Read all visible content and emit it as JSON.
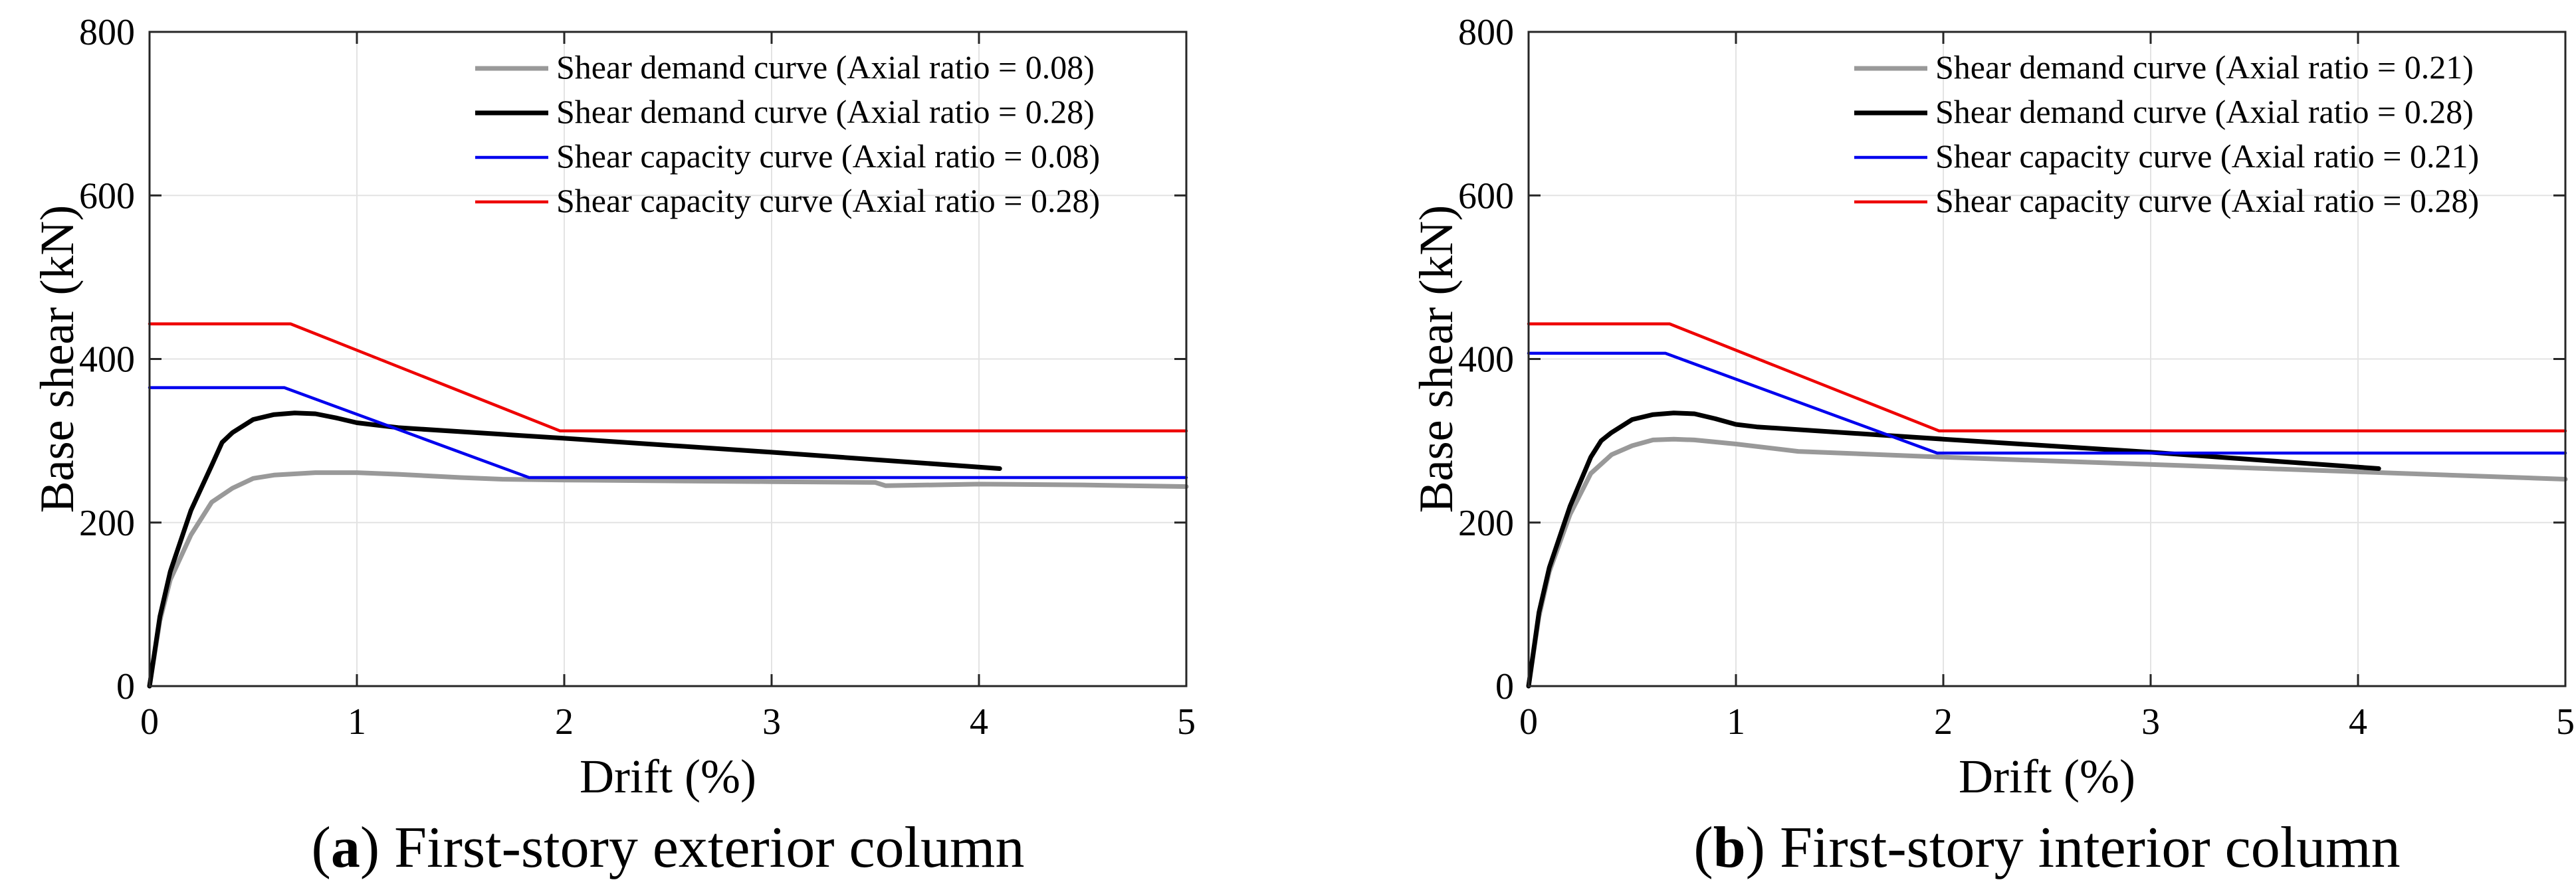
{
  "chart_data": [
    {
      "type": "line",
      "panel_letter": "a",
      "caption_text": "First-story exterior column",
      "xlabel": "Drift (%)",
      "ylabel": "Base shear (kN)",
      "xlim": [
        0,
        5
      ],
      "ylim": [
        0,
        800
      ],
      "xticks": [
        0,
        1,
        2,
        3,
        4,
        5
      ],
      "yticks": [
        0,
        200,
        400,
        600,
        800
      ],
      "grid": true,
      "legend_position": "top-right",
      "series": [
        {
          "name": "Shear demand curve (Axial ratio = 0.08)",
          "color": "#999999",
          "x": [
            0,
            0.05,
            0.1,
            0.2,
            0.3,
            0.4,
            0.5,
            0.6,
            0.8,
            1.0,
            1.2,
            1.5,
            1.7,
            2.0,
            2.5,
            3.0,
            3.5,
            3.55,
            4.0,
            4.5,
            5.0
          ],
          "y": [
            0,
            80,
            130,
            185,
            225,
            242,
            254,
            258,
            261,
            261,
            259,
            255,
            253,
            252,
            251,
            250,
            249,
            245,
            247,
            246,
            244
          ]
        },
        {
          "name": "Shear demand curve (Axial ratio = 0.28)",
          "color": "#000000",
          "x": [
            0,
            0.05,
            0.1,
            0.2,
            0.3,
            0.35,
            0.4,
            0.5,
            0.6,
            0.7,
            0.8,
            0.9,
            1.0,
            1.2,
            2.0,
            3.0,
            4.1
          ],
          "y": [
            0,
            85,
            140,
            215,
            270,
            298,
            310,
            326,
            332,
            334,
            333,
            328,
            322,
            316,
            303,
            286,
            266
          ]
        },
        {
          "name": "Shear capacity curve (Axial ratio = 0.08)",
          "color": "#0000ee",
          "x": [
            0,
            0.38,
            0.38,
            0.38,
            0.38,
            0.38,
            0.38,
            0.38,
            0.38,
            0.38,
            0.38,
            0.38,
            0.38,
            0.38,
            0.38,
            0.38,
            0.38,
            0.38,
            0.38,
            0.38,
            0.38,
            0.38,
            0.38,
            0.38,
            0.38,
            0.38,
            0.38,
            0.38,
            0.38,
            0.38,
            0.38,
            0.38,
            0.38,
            0.38,
            0.38,
            0.38,
            0.38,
            0.38,
            0.38,
            0.38,
            0.38,
            0.38,
            0.38,
            0.38,
            0.38,
            0.38,
            0.38,
            0.38,
            0.38,
            0.38,
            0.38,
            0.38,
            0.38,
            0.38,
            0.38,
            0.38,
            0.38,
            0.38,
            0.38,
            0.38,
            0.38,
            0.38,
            0.38,
            0.38,
            0.38,
            0.38,
            0.38,
            0.38,
            0.38,
            0.38,
            0.38,
            0.38,
            0.38,
            0.38,
            0.38,
            0.38,
            0.38,
            0.38,
            0.38,
            0.38,
            0.38,
            0.38,
            0.38,
            0.38,
            0.38,
            0.38,
            0.38,
            0.38,
            0.38,
            0.38,
            0.38,
            0.38,
            0.38,
            0.38,
            0.38,
            0.38,
            0.38,
            0.38,
            0.38,
            0.38,
            0.65,
            1.83,
            5.0
          ],
          "y": [
            365,
            365,
            365,
            365,
            365,
            365,
            365,
            365,
            365,
            365,
            365,
            365,
            365,
            365,
            365,
            365,
            365,
            365,
            365,
            365,
            365,
            365,
            365,
            365,
            365,
            365,
            365,
            365,
            365,
            365,
            365,
            365,
            365,
            365,
            365,
            365,
            365,
            365,
            365,
            365,
            365,
            365,
            365,
            365,
            365,
            365,
            365,
            365,
            365,
            365,
            365,
            365,
            365,
            365,
            365,
            365,
            365,
            365,
            365,
            365,
            365,
            365,
            365,
            365,
            365,
            365,
            365,
            365,
            365,
            365,
            365,
            365,
            365,
            365,
            365,
            365,
            365,
            365,
            365,
            365,
            365,
            365,
            365,
            365,
            365,
            365,
            365,
            365,
            365,
            365,
            365,
            365,
            365,
            365,
            365,
            365,
            365,
            365,
            365,
            365,
            365,
            255,
            255
          ]
        },
        {
          "name": "Shear capacity curve (Axial ratio = 0.28)",
          "color": "#ee0000",
          "x": [
            0,
            0.68,
            1.98,
            5.0
          ],
          "y": [
            443,
            443,
            312,
            312
          ]
        }
      ]
    },
    {
      "type": "line",
      "panel_letter": "b",
      "caption_text": "First-story interior column",
      "xlabel": "Drift (%)",
      "ylabel": "Base shear (kN)",
      "xlim": [
        0,
        5
      ],
      "ylim": [
        0,
        800
      ],
      "xticks": [
        0,
        1,
        2,
        3,
        4,
        5
      ],
      "yticks": [
        0,
        200,
        400,
        600,
        800
      ],
      "grid": true,
      "legend_position": "top-right",
      "series": [
        {
          "name": "Shear demand curve (Axial ratio = 0.21)",
          "color": "#999999",
          "x": [
            0,
            0.05,
            0.1,
            0.2,
            0.3,
            0.4,
            0.5,
            0.6,
            0.7,
            0.8,
            1.0,
            1.3,
            2.0,
            3.0,
            4.0,
            5.0
          ],
          "y": [
            0,
            85,
            140,
            210,
            260,
            283,
            294,
            301,
            302,
            301,
            296,
            287,
            280,
            271,
            262,
            253
          ]
        },
        {
          "name": "Shear demand curve (Axial ratio = 0.28)",
          "color": "#000000",
          "x": [
            0,
            0.05,
            0.1,
            0.2,
            0.3,
            0.35,
            0.4,
            0.5,
            0.6,
            0.7,
            0.8,
            0.9,
            1.0,
            1.1,
            2.0,
            3.0,
            4.1
          ],
          "y": [
            0,
            90,
            145,
            220,
            280,
            300,
            310,
            326,
            332,
            334,
            333,
            327,
            320,
            317,
            302,
            286,
            266
          ]
        },
        {
          "name": "Shear capacity curve (Axial ratio = 0.21)",
          "color": "#0000ee",
          "x": [
            0,
            0.66,
            1.97,
            5.0
          ],
          "y": [
            407,
            407,
            285,
            285
          ]
        },
        {
          "name": "Shear capacity curve (Axial ratio = 0.28)",
          "color": "#ee0000",
          "x": [
            0,
            0.68,
            1.98,
            5.0
          ],
          "y": [
            443,
            443,
            312,
            312
          ]
        }
      ]
    }
  ]
}
